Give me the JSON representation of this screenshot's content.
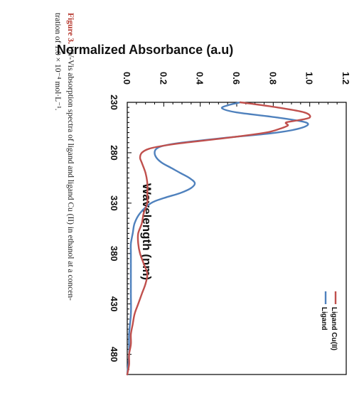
{
  "caption": {
    "label": "Figure 3.",
    "line1": " UV-Vis absorption spectra of ligand and ligand Cu (II) in ethanol at a concen-",
    "line2": "tration of 1.0 × 10⁻⁴ mol·L⁻¹."
  },
  "colors": {
    "ligand_cu": "#c0504d",
    "ligand": "#4f81bd",
    "axis": "#000000"
  },
  "chart_data": {
    "type": "line",
    "orientation": "rotated 90° clockwise",
    "xlabel": "Wavelength (nm)",
    "ylabel": "Normalized  Absorbance (a.u)",
    "xlim": [
      230,
      500
    ],
    "ylim": [
      0,
      1.2
    ],
    "x_ticks": [
      "230",
      "280",
      "330",
      "380",
      "430",
      "480"
    ],
    "y_ticks": [
      "0.0",
      "0.2",
      "0.4",
      "0.6",
      "0.8",
      "1.0",
      "1.2"
    ],
    "legend_position": "top-right",
    "grid": false,
    "series": [
      {
        "name": "Ligand Cu(II)",
        "color": "#c0504d",
        "x": [
          230,
          235,
          240,
          245,
          248,
          250,
          253,
          256,
          260,
          265,
          270,
          273,
          276,
          280,
          285,
          290,
          300,
          310,
          320,
          330,
          340,
          350,
          360,
          370,
          380,
          390,
          400,
          410,
          420,
          430,
          440,
          450,
          460,
          470,
          480,
          490,
          500
        ],
        "y": [
          0.62,
          0.82,
          0.97,
          1.0,
          0.93,
          0.87,
          0.88,
          0.84,
          0.76,
          0.56,
          0.32,
          0.2,
          0.12,
          0.08,
          0.07,
          0.08,
          0.1,
          0.11,
          0.11,
          0.11,
          0.09,
          0.08,
          0.06,
          0.06,
          0.07,
          0.09,
          0.11,
          0.1,
          0.08,
          0.06,
          0.04,
          0.03,
          0.02,
          0.02,
          0.01,
          0.01,
          0.0
        ]
      },
      {
        "name": "Ligand",
        "color": "#4f81bd",
        "x": [
          230,
          233,
          236,
          240,
          245,
          250,
          255,
          260,
          265,
          270,
          273,
          276,
          280,
          285,
          290,
          295,
          300,
          305,
          310,
          315,
          320,
          325,
          330,
          340,
          350,
          360,
          370,
          380,
          400,
          420,
          440,
          460,
          480,
          500
        ],
        "y": [
          0.62,
          0.55,
          0.52,
          0.6,
          0.82,
          0.98,
          0.96,
          0.82,
          0.55,
          0.3,
          0.2,
          0.16,
          0.15,
          0.16,
          0.19,
          0.24,
          0.29,
          0.34,
          0.37,
          0.35,
          0.29,
          0.2,
          0.13,
          0.07,
          0.04,
          0.03,
          0.02,
          0.02,
          0.02,
          0.02,
          0.02,
          0.01,
          0.01,
          0.0
        ]
      }
    ]
  }
}
